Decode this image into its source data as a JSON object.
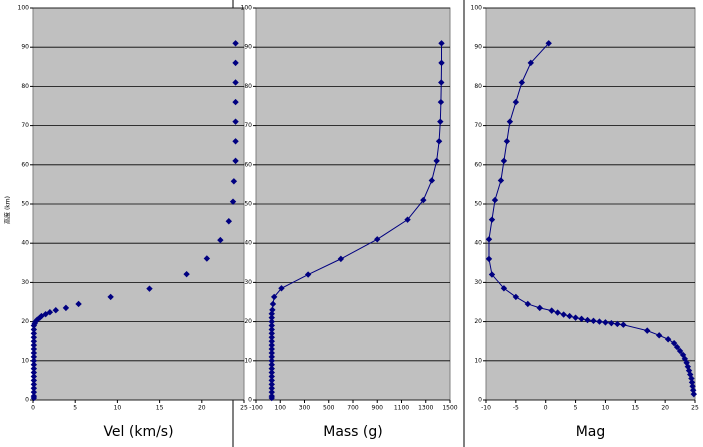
{
  "chart_data": [
    {
      "type": "scatter",
      "x_label": "Vel (km/s)",
      "y_label": "高度 (km)",
      "color": "#000080",
      "xlim": [
        0,
        25
      ],
      "xticks": [
        0,
        5,
        10,
        15,
        20,
        25
      ],
      "ylim": [
        0,
        100
      ],
      "yticks": [
        0,
        10,
        20,
        30,
        40,
        50,
        60,
        70,
        80,
        90,
        100
      ],
      "grid": true,
      "x": [
        24,
        24,
        24,
        24,
        24,
        24,
        24,
        23.8,
        23.7,
        23.2,
        22.2,
        20.6,
        18.2,
        13.8,
        9.2,
        5.4,
        3.9,
        2.7,
        2,
        1.5,
        1,
        0.8,
        0.5,
        0.3,
        0.2,
        0.1,
        0.1,
        0.1,
        0.1,
        0.1,
        0.1,
        0.1,
        0.1,
        0.1,
        0.1,
        0.1,
        0.1,
        0.1,
        0.1,
        0.1,
        0.1,
        0.1,
        0.1,
        0.1,
        0.1
      ],
      "y": [
        91,
        86,
        81,
        76,
        71,
        66,
        61,
        55.8,
        50.6,
        45.6,
        40.8,
        36.1,
        32.1,
        28.4,
        26.3,
        24.5,
        23.5,
        22.9,
        22.4,
        21.9,
        21.4,
        21,
        20.5,
        20,
        19.5,
        19,
        18,
        17,
        16,
        15,
        14,
        13,
        12,
        11,
        10,
        9,
        8,
        7,
        6,
        5,
        4,
        3,
        2,
        1,
        0.5
      ]
    },
    {
      "type": "line",
      "x_label": "Mass (g)",
      "color": "#000080",
      "xlim": [
        -100,
        1500
      ],
      "xticks": [
        -100,
        100,
        300,
        500,
        700,
        900,
        1100,
        1300,
        1500
      ],
      "ylim": [
        0,
        100
      ],
      "yticks": [
        0,
        10,
        20,
        30,
        40,
        50,
        60,
        70,
        80,
        90,
        100
      ],
      "grid": true,
      "x": [
        1430,
        1430,
        1428,
        1425,
        1420,
        1410,
        1390,
        1350,
        1280,
        1150,
        900,
        600,
        330,
        110,
        50,
        40,
        35,
        30,
        30,
        30,
        30,
        30,
        30,
        30,
        30,
        30,
        30,
        30,
        30,
        30,
        30,
        30,
        30,
        30,
        30,
        30,
        30,
        30,
        30,
        30
      ],
      "y": [
        91,
        86,
        81,
        76,
        71,
        66,
        61,
        56,
        51,
        46,
        41,
        36,
        32,
        28.5,
        26.3,
        24.5,
        23,
        22,
        21,
        20,
        19,
        18,
        17,
        16,
        15,
        14,
        13,
        12,
        11,
        10,
        9,
        8,
        7,
        6,
        5,
        4,
        3,
        2,
        1,
        0.5
      ]
    },
    {
      "type": "line",
      "x_label": "Mag",
      "color": "#000080",
      "xlim": [
        -10,
        25
      ],
      "xticks": [
        -10,
        -5,
        0,
        5,
        10,
        15,
        20,
        25
      ],
      "ylim": [
        0,
        100
      ],
      "yticks": [
        0,
        10,
        20,
        30,
        40,
        50,
        60,
        70,
        80,
        90,
        100
      ],
      "grid": true,
      "x": [
        0.5,
        -2.5,
        -4,
        -5,
        -6,
        -6.5,
        -7,
        -7.5,
        -8.5,
        -9,
        -9.5,
        -9.5,
        -9,
        -7,
        -5,
        -3,
        -1,
        1,
        2,
        3,
        4,
        5,
        6,
        7,
        8,
        9,
        10,
        11,
        12,
        13,
        17,
        19,
        20.5,
        21.5,
        22,
        22.5,
        23,
        23.3,
        23.6,
        23.8,
        24,
        24.2,
        24.4,
        24.5,
        24.6,
        24.7,
        24.8
      ],
      "y": [
        91,
        86,
        81,
        76,
        71,
        66,
        61,
        56,
        51,
        46,
        41,
        36,
        32,
        28.5,
        26.3,
        24.5,
        23.5,
        22.8,
        22.3,
        21.8,
        21.4,
        21,
        20.7,
        20.4,
        20.2,
        20,
        19.8,
        19.6,
        19.4,
        19.2,
        17.7,
        16.5,
        15.5,
        14.5,
        13.5,
        12.5,
        11.5,
        10.5,
        9.5,
        8.5,
        7.5,
        6.5,
        5.5,
        4.5,
        3.5,
        2.5,
        1.5
      ]
    }
  ]
}
